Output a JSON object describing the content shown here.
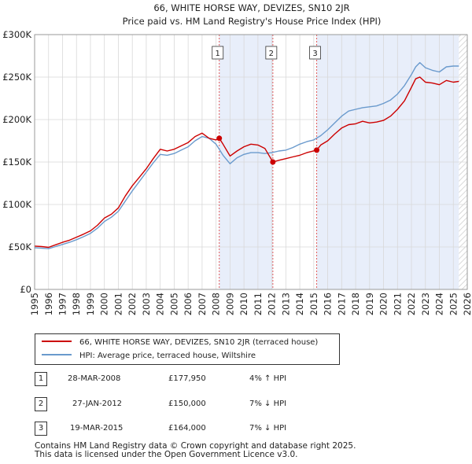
{
  "title_line1": "66, WHITE HORSE WAY, DEVIZES, SN10 2JR",
  "title_line2": "Price paid vs. HM Land Registry's House Price Index (HPI)",
  "colors": {
    "price_line": "#cc0000",
    "hpi_line": "#6a9acd",
    "shade": "#e8eefa",
    "grid": "#d8d8d8",
    "marker_line": "#e05a5a"
  },
  "legend": {
    "price_label": "66, WHITE HORSE WAY, DEVIZES, SN10 2JR (terraced house)",
    "hpi_label": "HPI: Average price, terraced house, Wiltshire"
  },
  "transactions": [
    {
      "num": "1",
      "date": "28-MAR-2008",
      "price": "£177,950",
      "hpi": "4% ↑ HPI"
    },
    {
      "num": "2",
      "date": "27-JAN-2012",
      "price": "£150,000",
      "hpi": "7% ↓ HPI"
    },
    {
      "num": "3",
      "date": "19-MAR-2015",
      "price": "£164,000",
      "hpi": "7% ↓ HPI"
    }
  ],
  "footer": {
    "line1": "Contains HM Land Registry data © Crown copyright and database right 2025.",
    "line2": "This data is licensed under the Open Government Licence v3.0."
  },
  "chart_data": {
    "type": "line",
    "title": "66, WHITE HORSE WAY, DEVIZES, SN10 2JR — Price paid vs. HM Land Registry's House Price Index (HPI)",
    "xlabel": "",
    "ylabel": "",
    "xlim": [
      1995,
      2026
    ],
    "ylim": [
      0,
      300000
    ],
    "y_ticks": [
      0,
      50000,
      100000,
      150000,
      200000,
      250000,
      300000
    ],
    "y_tick_labels": [
      "£0",
      "£50K",
      "£100K",
      "£150K",
      "£200K",
      "£250K",
      "£300K"
    ],
    "x_ticks": [
      1995,
      1996,
      1997,
      1998,
      1999,
      2000,
      2001,
      2002,
      2003,
      2004,
      2005,
      2006,
      2007,
      2008,
      2009,
      2010,
      2011,
      2012,
      2013,
      2014,
      2015,
      2016,
      2017,
      2018,
      2019,
      2020,
      2021,
      2022,
      2023,
      2024,
      2025,
      2026
    ],
    "x_tick_labels": [
      "1995",
      "1996",
      "1997",
      "1998",
      "1999",
      "2000",
      "2001",
      "2002",
      "2003",
      "2004",
      "2005",
      "2006",
      "2007",
      "2008",
      "2009",
      "2010",
      "2011",
      "2012",
      "2013",
      "2014",
      "2015",
      "2016",
      "2017",
      "2018",
      "2019",
      "2020",
      "2021",
      "2022",
      "2023",
      "2024",
      "2025",
      "2026"
    ],
    "grid": true,
    "shaded_ranges": [
      [
        2008.23,
        2012.07
      ],
      [
        2015.21,
        2025.4
      ]
    ],
    "hatched_range": [
      2025.4,
      2026
    ],
    "markers": [
      {
        "label": "1",
        "x": 2008.23,
        "y": 177950
      },
      {
        "label": "2",
        "x": 2012.07,
        "y": 150000
      },
      {
        "label": "3",
        "x": 2015.21,
        "y": 164000
      }
    ],
    "series": [
      {
        "name": "66, WHITE HORSE WAY, DEVIZES, SN10 2JR (terraced house)",
        "color": "#cc0000",
        "x": [
          1995,
          1995.5,
          1996,
          1996.5,
          1997,
          1997.5,
          1998,
          1998.5,
          1999,
          1999.5,
          2000,
          2000.5,
          2001,
          2001.5,
          2002,
          2002.5,
          2003,
          2003.5,
          2004,
          2004.5,
          2005,
          2005.5,
          2006,
          2006.5,
          2007,
          2007.5,
          2008,
          2008.23,
          2008.5,
          2009,
          2009.5,
          2010,
          2010.5,
          2011,
          2011.5,
          2012.07,
          2012.5,
          2013,
          2013.5,
          2014,
          2014.5,
          2015.21,
          2015.5,
          2016,
          2016.5,
          2017,
          2017.5,
          2018,
          2018.5,
          2019,
          2019.5,
          2020,
          2020.5,
          2021,
          2021.5,
          2022,
          2022.3,
          2022.6,
          2023,
          2023.5,
          2024,
          2024.5,
          2025,
          2025.4
        ],
        "y": [
          51000,
          50500,
          49500,
          52500,
          55500,
          58000,
          61500,
          65000,
          69000,
          75500,
          84000,
          88500,
          96000,
          110000,
          122000,
          132000,
          142000,
          154000,
          165000,
          163000,
          165000,
          169000,
          173000,
          180000,
          184000,
          178000,
          176000,
          177950,
          171000,
          157000,
          163000,
          168000,
          171000,
          170000,
          166000,
          150000,
          152000,
          154000,
          156000,
          158000,
          161000,
          164000,
          170000,
          175000,
          183000,
          190000,
          194000,
          195000,
          198000,
          196000,
          197000,
          199000,
          204000,
          212000,
          222000,
          238000,
          248000,
          250000,
          244000,
          243000,
          241000,
          246000,
          244000,
          245000
        ]
      },
      {
        "name": "HPI: Average price, terraced house, Wiltshire",
        "color": "#6a9acd",
        "x": [
          1995,
          1995.5,
          1996,
          1996.5,
          1997,
          1997.5,
          1998,
          1998.5,
          1999,
          1999.5,
          2000,
          2000.5,
          2001,
          2001.5,
          2002,
          2002.5,
          2003,
          2003.5,
          2004,
          2004.5,
          2005,
          2005.5,
          2006,
          2006.5,
          2007,
          2007.5,
          2008,
          2008.5,
          2009,
          2009.5,
          2010,
          2010.5,
          2011,
          2011.5,
          2012,
          2012.5,
          2013,
          2013.5,
          2014,
          2014.5,
          2015,
          2015.5,
          2016,
          2016.5,
          2017,
          2017.5,
          2018,
          2018.5,
          2019,
          2019.5,
          2020,
          2020.5,
          2021,
          2021.5,
          2022,
          2022.3,
          2022.6,
          2023,
          2023.5,
          2024,
          2024.5,
          2025,
          2025.4
        ],
        "y": [
          49000,
          48500,
          48000,
          50500,
          53000,
          55500,
          58500,
          62000,
          66000,
          72000,
          80000,
          85000,
          92000,
          104000,
          116000,
          127000,
          138000,
          149000,
          159000,
          158000,
          160000,
          164000,
          168000,
          175000,
          180000,
          178000,
          171000,
          158000,
          148000,
          155000,
          159000,
          161000,
          161000,
          160000,
          161000,
          163000,
          164000,
          167000,
          171000,
          174000,
          176000,
          181000,
          188000,
          196000,
          204000,
          210000,
          212000,
          214000,
          215000,
          216000,
          219000,
          223000,
          230000,
          240000,
          253000,
          262000,
          267000,
          261000,
          258000,
          256000,
          262000,
          263000,
          263000
        ]
      }
    ]
  }
}
